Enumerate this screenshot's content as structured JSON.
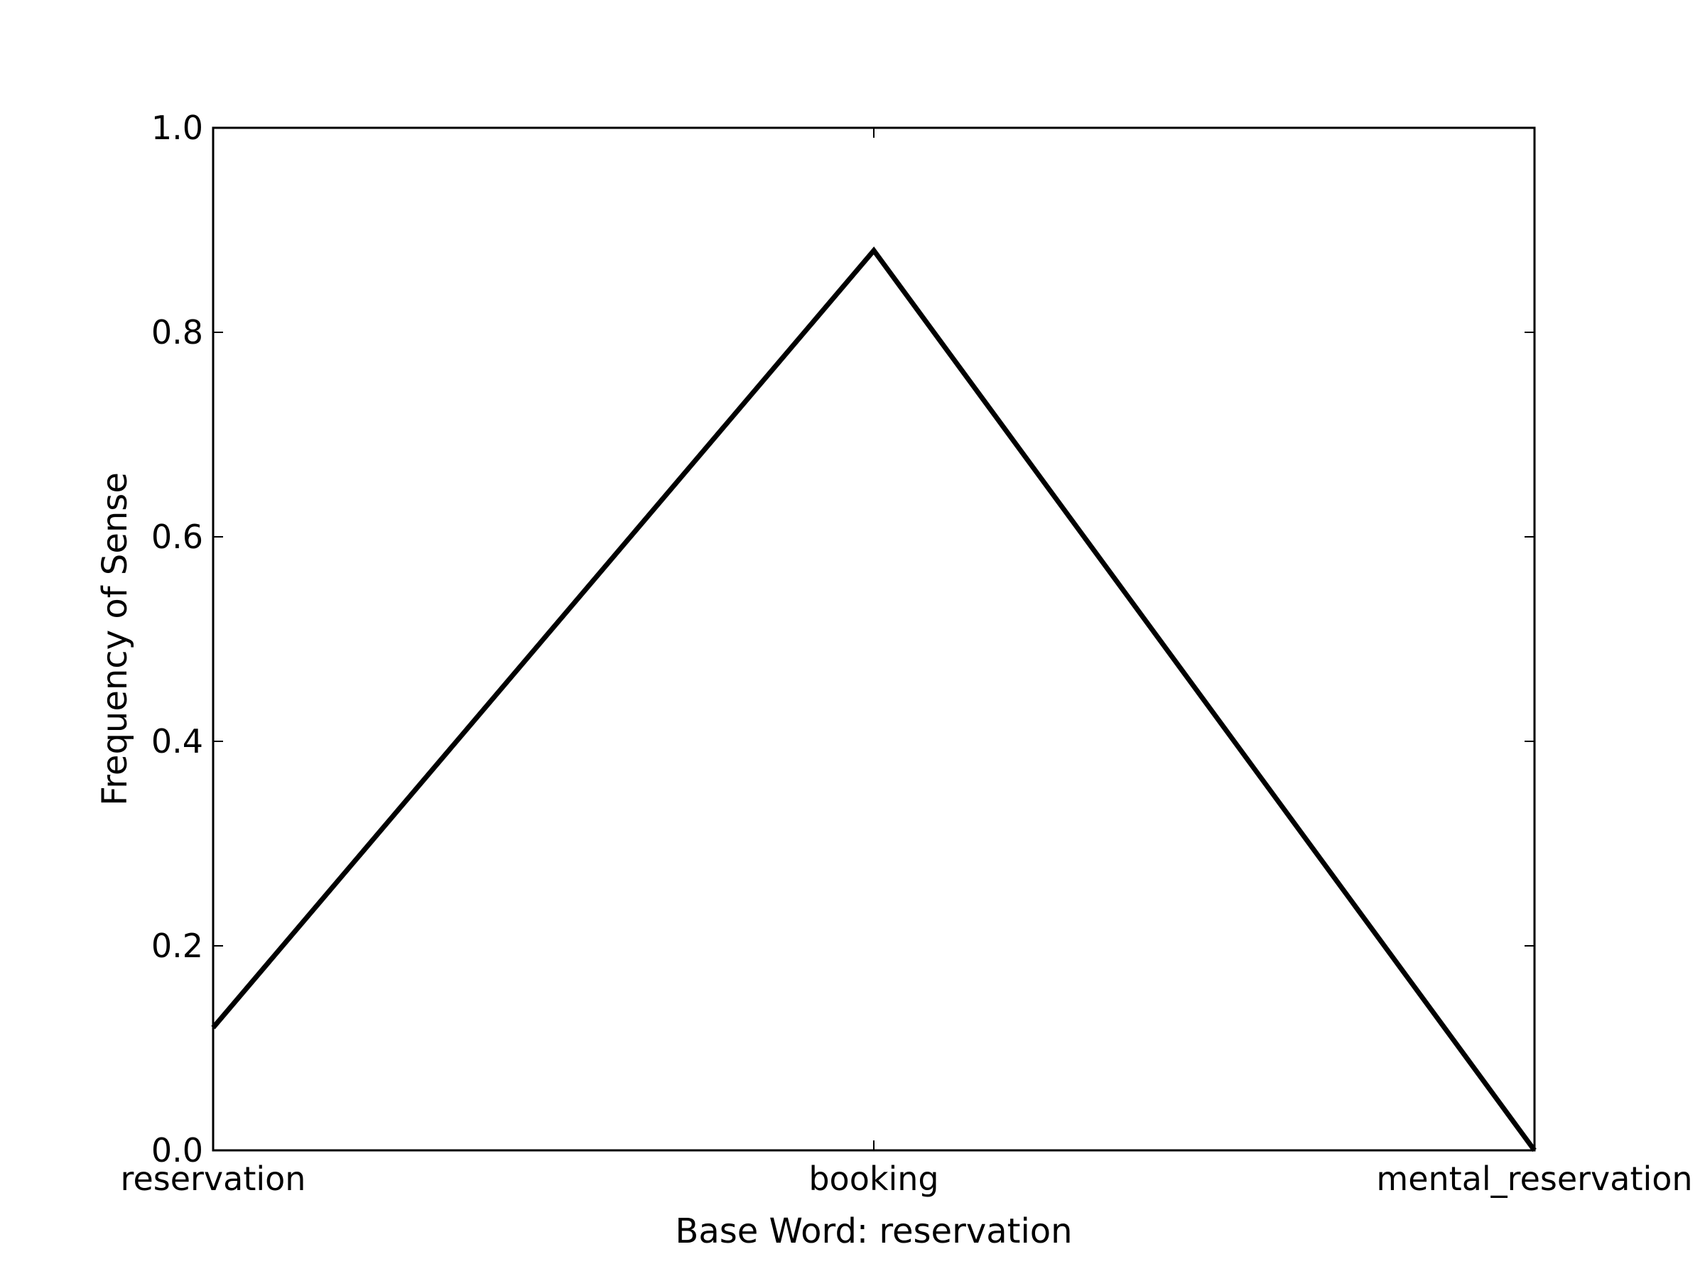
{
  "chart_data": {
    "type": "line",
    "title": "",
    "xlabel": "Base Word: reservation",
    "ylabel": "Frequency of Sense",
    "categories": [
      "reservation",
      "booking",
      "mental_reservation"
    ],
    "series": [
      {
        "values": [
          0.12,
          0.88,
          0.0
        ],
        "color": "#000000"
      }
    ],
    "ylim": [
      0.0,
      1.0
    ],
    "yticks": [
      "0.0",
      "0.2",
      "0.4",
      "0.6",
      "0.8",
      "1.0"
    ],
    "grid": false,
    "legend": "none"
  }
}
